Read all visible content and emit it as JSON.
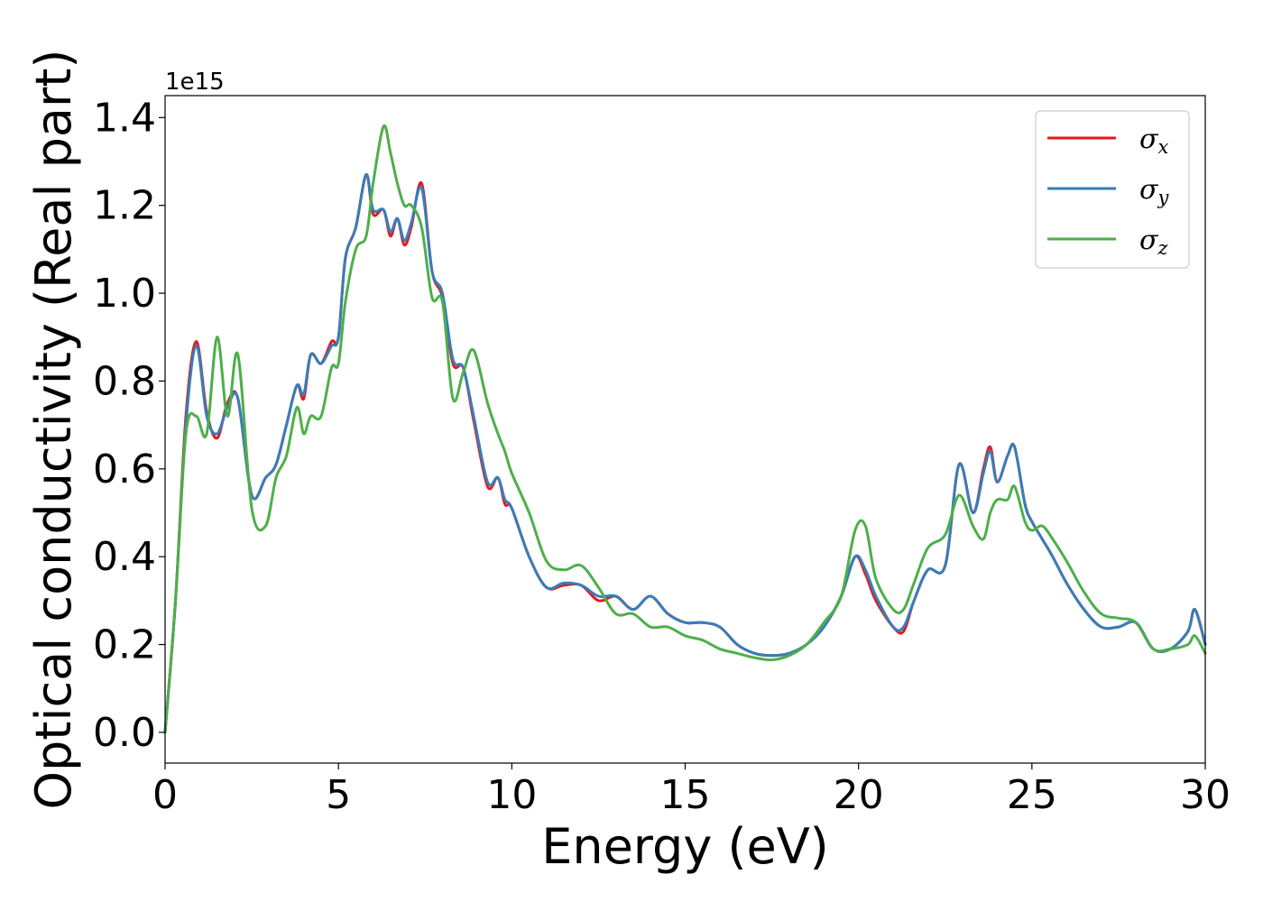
{
  "chart_data": {
    "type": "line",
    "xlabel": "Energy (eV)",
    "ylabel": "Optical conductivity (Real part)",
    "y_offset_text": "1e15",
    "xlim": [
      0,
      30
    ],
    "ylim": [
      -0.07,
      1.45
    ],
    "x_ticks": [
      0,
      5,
      10,
      15,
      20,
      25,
      30
    ],
    "x_tick_labels": [
      "0",
      "5",
      "10",
      "15",
      "20",
      "25",
      "30"
    ],
    "y_ticks": [
      0.0,
      0.2,
      0.4,
      0.6,
      0.8,
      1.0,
      1.2,
      1.4
    ],
    "y_tick_labels": [
      "0.0",
      "0.2",
      "0.4",
      "0.6",
      "0.8",
      "1.0",
      "1.2",
      "1.4"
    ],
    "grid": false,
    "legend_position": "top-right",
    "x": [
      0,
      0.3,
      0.6,
      0.9,
      1.2,
      1.5,
      1.8,
      2.1,
      2.5,
      2.9,
      3.2,
      3.5,
      3.8,
      4.0,
      4.2,
      4.5,
      4.8,
      5.0,
      5.2,
      5.5,
      5.8,
      6.0,
      6.3,
      6.5,
      6.7,
      6.9,
      7.1,
      7.4,
      7.7,
      8.0,
      8.3,
      8.6,
      8.9,
      9.3,
      9.6,
      9.8,
      10.0,
      10.5,
      11.0,
      11.5,
      12.0,
      12.5,
      13.0,
      13.5,
      14.0,
      14.5,
      15.0,
      15.5,
      16.0,
      16.5,
      17.0,
      17.5,
      18.0,
      18.5,
      19.0,
      19.5,
      19.9,
      20.2,
      20.5,
      21.0,
      21.3,
      21.6,
      22.0,
      22.5,
      22.9,
      23.3,
      23.6,
      23.8,
      24.0,
      24.3,
      24.5,
      24.8,
      25.0,
      25.3,
      25.6,
      26.0,
      26.5,
      27.0,
      27.5,
      28.0,
      28.5,
      29.0,
      29.5,
      29.7,
      30.0
    ],
    "series": [
      {
        "name": "σx",
        "label_main": "σ",
        "label_sub": "x",
        "color": "#e41a1c",
        "values": [
          0.0,
          0.3,
          0.72,
          0.89,
          0.73,
          0.67,
          0.75,
          0.76,
          0.54,
          0.58,
          0.61,
          0.7,
          0.79,
          0.76,
          0.86,
          0.84,
          0.89,
          0.9,
          1.08,
          1.15,
          1.27,
          1.18,
          1.19,
          1.13,
          1.17,
          1.11,
          1.15,
          1.25,
          1.05,
          0.99,
          0.84,
          0.83,
          0.71,
          0.56,
          0.58,
          0.52,
          0.51,
          0.4,
          0.33,
          0.335,
          0.335,
          0.3,
          0.31,
          0.28,
          0.31,
          0.27,
          0.25,
          0.25,
          0.24,
          0.2,
          0.18,
          0.175,
          0.18,
          0.2,
          0.24,
          0.31,
          0.4,
          0.36,
          0.3,
          0.24,
          0.23,
          0.3,
          0.37,
          0.38,
          0.61,
          0.5,
          0.6,
          0.65,
          0.57,
          0.63,
          0.65,
          0.52,
          0.48,
          0.44,
          0.4,
          0.34,
          0.28,
          0.24,
          0.24,
          0.25,
          0.19,
          0.19,
          0.23,
          0.28,
          0.2
        ]
      },
      {
        "name": "σy",
        "label_main": "σ",
        "label_sub": "y",
        "color": "#377eb8",
        "values": [
          0.0,
          0.3,
          0.7,
          0.88,
          0.72,
          0.68,
          0.74,
          0.76,
          0.54,
          0.58,
          0.61,
          0.7,
          0.79,
          0.77,
          0.86,
          0.84,
          0.88,
          0.9,
          1.08,
          1.15,
          1.27,
          1.19,
          1.19,
          1.14,
          1.17,
          1.12,
          1.16,
          1.24,
          1.05,
          1.0,
          0.85,
          0.83,
          0.72,
          0.57,
          0.58,
          0.53,
          0.51,
          0.4,
          0.33,
          0.34,
          0.335,
          0.31,
          0.31,
          0.28,
          0.31,
          0.27,
          0.25,
          0.25,
          0.24,
          0.2,
          0.18,
          0.175,
          0.18,
          0.2,
          0.24,
          0.31,
          0.4,
          0.37,
          0.31,
          0.24,
          0.24,
          0.3,
          0.37,
          0.38,
          0.61,
          0.5,
          0.59,
          0.64,
          0.57,
          0.63,
          0.65,
          0.52,
          0.48,
          0.44,
          0.4,
          0.34,
          0.28,
          0.24,
          0.24,
          0.25,
          0.19,
          0.19,
          0.23,
          0.28,
          0.2
        ]
      },
      {
        "name": "σz",
        "label_main": "σ",
        "label_sub": "z",
        "color": "#4daf4a",
        "values": [
          0.0,
          0.3,
          0.68,
          0.72,
          0.68,
          0.9,
          0.72,
          0.86,
          0.51,
          0.47,
          0.58,
          0.63,
          0.74,
          0.68,
          0.72,
          0.72,
          0.83,
          0.84,
          0.98,
          1.1,
          1.13,
          1.25,
          1.38,
          1.32,
          1.25,
          1.2,
          1.2,
          1.15,
          0.99,
          0.98,
          0.76,
          0.82,
          0.87,
          0.75,
          0.68,
          0.64,
          0.59,
          0.5,
          0.39,
          0.37,
          0.38,
          0.33,
          0.27,
          0.27,
          0.24,
          0.24,
          0.22,
          0.21,
          0.19,
          0.18,
          0.17,
          0.165,
          0.175,
          0.2,
          0.25,
          0.31,
          0.46,
          0.47,
          0.35,
          0.28,
          0.28,
          0.34,
          0.42,
          0.45,
          0.54,
          0.47,
          0.44,
          0.5,
          0.53,
          0.53,
          0.56,
          0.48,
          0.46,
          0.47,
          0.44,
          0.39,
          0.32,
          0.27,
          0.26,
          0.25,
          0.19,
          0.19,
          0.2,
          0.22,
          0.18
        ]
      }
    ]
  }
}
